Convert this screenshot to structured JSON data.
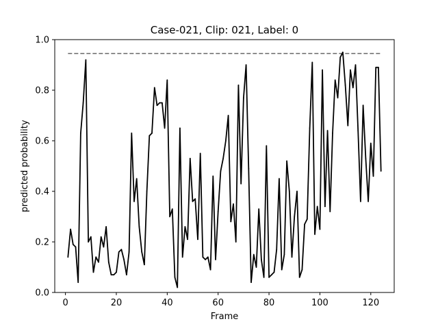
{
  "chart_data": {
    "type": "line",
    "title": "Case-021, Clip: 021, Label: 0",
    "xlabel": "Frame",
    "ylabel": "predicted probability",
    "xlim": [
      -4.2,
      129.2
    ],
    "ylim": [
      0.0,
      1.0
    ],
    "xticks": [
      0,
      20,
      40,
      60,
      80,
      100,
      120
    ],
    "yticks": [
      0.0,
      0.2,
      0.4,
      0.6,
      0.8,
      1.0
    ],
    "xtick_labels": [
      "0",
      "20",
      "40",
      "60",
      "80",
      "100",
      "120"
    ],
    "ytick_labels": [
      "0.0",
      "0.2",
      "0.4",
      "0.6",
      "0.8",
      "1.0"
    ],
    "grid": false,
    "colors": {
      "series": "#000000",
      "reference": "#666666"
    },
    "series": [
      {
        "x": [
          1,
          2,
          3,
          4,
          5,
          6,
          7,
          8,
          9,
          10,
          11,
          12,
          13,
          14,
          15,
          16,
          17,
          18,
          19,
          20,
          21,
          22,
          23,
          24,
          25,
          26,
          27,
          28,
          29,
          30,
          31,
          32,
          33,
          34,
          35,
          36,
          37,
          38,
          39,
          40,
          41,
          42,
          43,
          44,
          45,
          46,
          47,
          48,
          49,
          50,
          51,
          52,
          53,
          54,
          55,
          56,
          57,
          58,
          59,
          60,
          61,
          62,
          63,
          64,
          65,
          66,
          67,
          68,
          69,
          70,
          71,
          72,
          73,
          74,
          75,
          76,
          77,
          78,
          79,
          80,
          81,
          82,
          83,
          84,
          85,
          86,
          87,
          88,
          89,
          90,
          91,
          92,
          93,
          94,
          95,
          96,
          97,
          98,
          99,
          100,
          101,
          102,
          103,
          104,
          105,
          106,
          107,
          108,
          109,
          110,
          111,
          112,
          113,
          114,
          115,
          116,
          117,
          118,
          119,
          120,
          121,
          122,
          123,
          124
        ],
        "values": [
          0.14,
          0.25,
          0.19,
          0.18,
          0.04,
          0.63,
          0.75,
          0.92,
          0.2,
          0.22,
          0.08,
          0.14,
          0.12,
          0.22,
          0.18,
          0.26,
          0.12,
          0.07,
          0.07,
          0.08,
          0.16,
          0.17,
          0.13,
          0.07,
          0.16,
          0.63,
          0.36,
          0.45,
          0.26,
          0.16,
          0.11,
          0.4,
          0.62,
          0.63,
          0.81,
          0.74,
          0.75,
          0.75,
          0.65,
          0.84,
          0.3,
          0.33,
          0.06,
          0.02,
          0.65,
          0.14,
          0.26,
          0.21,
          0.53,
          0.36,
          0.37,
          0.21,
          0.55,
          0.14,
          0.13,
          0.14,
          0.09,
          0.46,
          0.13,
          0.32,
          0.48,
          0.53,
          0.6,
          0.7,
          0.28,
          0.35,
          0.2,
          0.82,
          0.43,
          0.77,
          0.9,
          0.49,
          0.04,
          0.15,
          0.1,
          0.33,
          0.13,
          0.06,
          0.58,
          0.06,
          0.07,
          0.08,
          0.17,
          0.45,
          0.09,
          0.15,
          0.52,
          0.4,
          0.14,
          0.3,
          0.4,
          0.06,
          0.09,
          0.27,
          0.29,
          0.65,
          0.91,
          0.23,
          0.34,
          0.25,
          0.88,
          0.34,
          0.64,
          0.32,
          0.63,
          0.84,
          0.77,
          0.93,
          0.95,
          0.82,
          0.66,
          0.88,
          0.81,
          0.9,
          0.64,
          0.36,
          0.74,
          0.53,
          0.36,
          0.59,
          0.46,
          0.89,
          0.89,
          0.48
        ]
      }
    ],
    "reference_line": {
      "y": 0.945,
      "x": [
        1,
        124
      ],
      "style": "dashed"
    }
  }
}
